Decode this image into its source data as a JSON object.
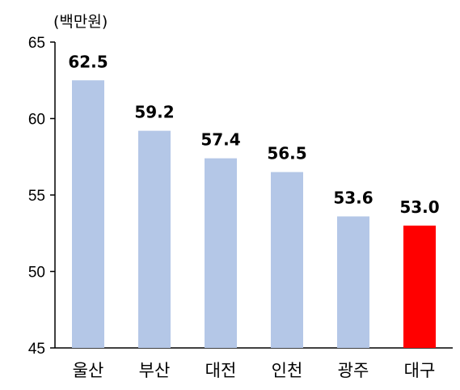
{
  "chart_data": {
    "type": "bar",
    "unit_label": "(백만원)",
    "categories": [
      "울산",
      "부산",
      "대전",
      "인천",
      "광주",
      "대구"
    ],
    "values": [
      62.5,
      59.2,
      57.4,
      56.5,
      53.6,
      53.0
    ],
    "data_labels": [
      "62.5",
      "59.2",
      "57.4",
      "56.5",
      "53.6",
      "53.0"
    ],
    "ylim": [
      45,
      65
    ],
    "yticks": [
      45,
      50,
      55,
      60,
      65
    ],
    "ytick_labels": [
      "45",
      "50",
      "55",
      "60",
      "65"
    ],
    "grid": false,
    "legend": "none",
    "colors": {
      "default_bar": "#b4c7e7",
      "highlight_bar": "#ff0000",
      "axis": "#000000"
    },
    "highlight_index": 5
  }
}
